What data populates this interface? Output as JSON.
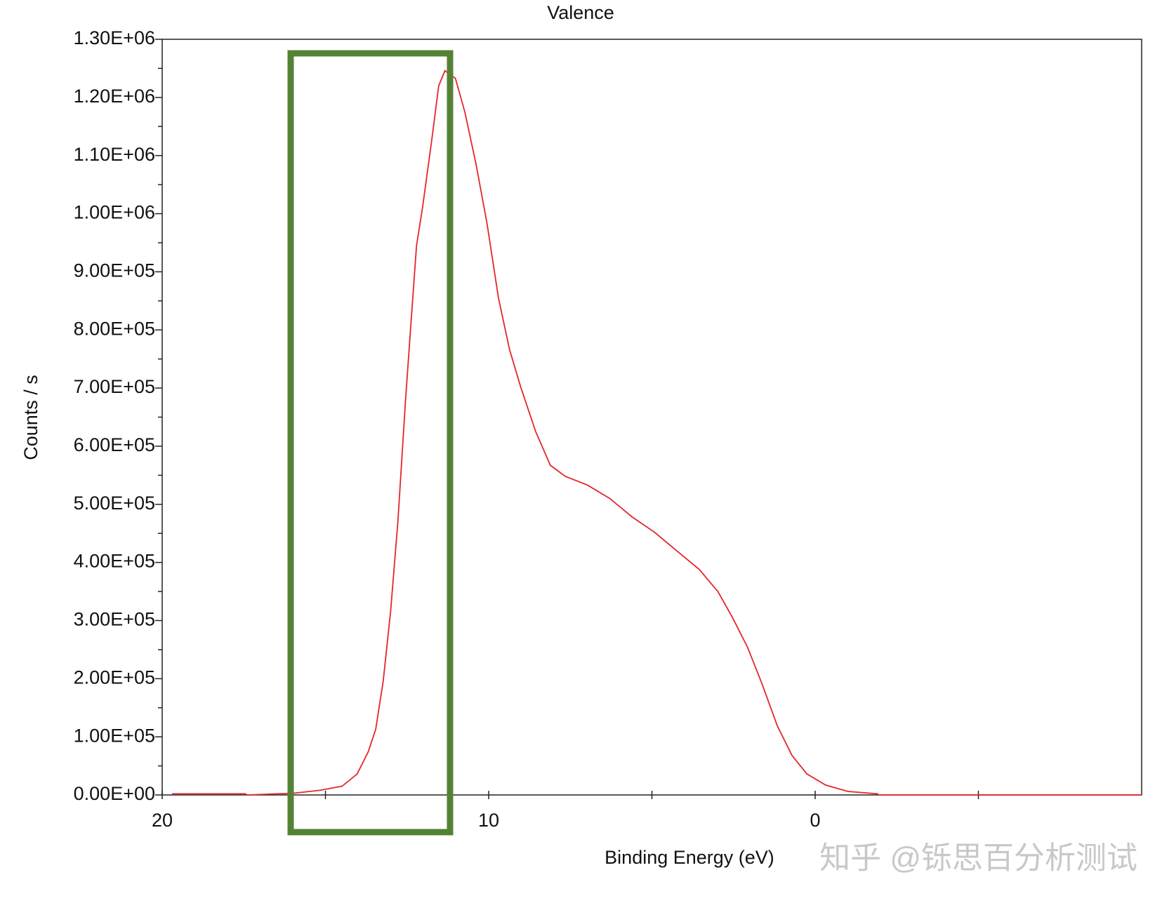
{
  "chart_data": {
    "type": "line",
    "title": "Valence",
    "xlabel": "Binding Energy (eV)",
    "ylabel": "Counts / s",
    "watermark": "知乎 @铄思百分析测试",
    "color": "#e4262b",
    "x": [
      19.7,
      17.45,
      17.4,
      15.97,
      15.17,
      14.49,
      14.03,
      13.69,
      13.46,
      13.23,
      13.0,
      12.78,
      12.55,
      12.39,
      12.21,
      12.03,
      11.75,
      11.53,
      11.34,
      11.18,
      11.02,
      10.73,
      10.39,
      10.05,
      9.7,
      9.36,
      9.02,
      8.56,
      8.11,
      7.65,
      6.97,
      6.29,
      5.6,
      4.92,
      4.24,
      3.55,
      2.98,
      2.53,
      2.07,
      1.62,
      1.16,
      0.71,
      0.25,
      -0.32,
      -1.0,
      -1.91,
      -1.95,
      -10
    ],
    "values": [
      2000,
      2000,
      0,
      3000,
      8000,
      15000,
      36000,
      74000,
      113000,
      196000,
      318000,
      471000,
      676000,
      804000,
      945000,
      1009000,
      1124000,
      1220000,
      1246000,
      1239000,
      1233000,
      1175000,
      1086000,
      983000,
      855000,
      766000,
      702000,
      625000,
      567000,
      548000,
      533000,
      510000,
      478000,
      452000,
      420000,
      388000,
      350000,
      305000,
      254000,
      190000,
      119000,
      68000,
      36000,
      17000,
      6000,
      2000,
      0,
      0
    ],
    "xlim": [
      20,
      -10
    ],
    "xticks": [
      20,
      10,
      0
    ],
    "xminorticks": [
      15,
      5,
      -5
    ],
    "ylim": [
      0,
      1300000
    ],
    "yticks": [
      {
        "value": 0,
        "label": "0.00E+00"
      },
      {
        "value": 100000,
        "label": "1.00E+05"
      },
      {
        "value": 200000,
        "label": "2.00E+05"
      },
      {
        "value": 300000,
        "label": "3.00E+05"
      },
      {
        "value": 400000,
        "label": "4.00E+05"
      },
      {
        "value": 500000,
        "label": "5.00E+05"
      },
      {
        "value": 600000,
        "label": "6.00E+05"
      },
      {
        "value": 700000,
        "label": "7.00E+05"
      },
      {
        "value": 800000,
        "label": "8.00E+05"
      },
      {
        "value": 900000,
        "label": "9.00E+05"
      },
      {
        "value": 1000000,
        "label": "1.00E+06"
      },
      {
        "value": 1100000,
        "label": "1.10E+06"
      },
      {
        "value": 1200000,
        "label": "1.20E+06"
      },
      {
        "value": 1300000,
        "label": "1.30E+06"
      }
    ],
    "yminorticks": [
      50000,
      150000,
      250000,
      350000,
      450000,
      550000,
      650000,
      750000,
      850000,
      950000,
      1050000,
      1150000,
      1250000
    ]
  }
}
